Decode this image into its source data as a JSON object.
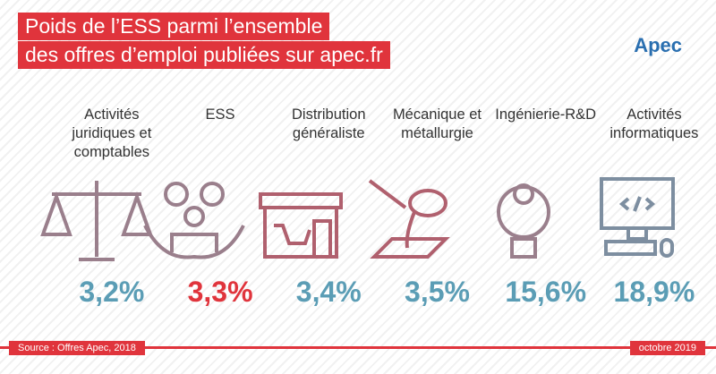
{
  "chart_data": {
    "type": "icon-stat",
    "title_lines": [
      "Poids de l’ESS parmi l’ensemble",
      "des offres d’emploi publiées sur apec.fr"
    ],
    "logo": "Apec",
    "categories": [
      "Activités juridiques et comptables",
      "ESS",
      "Distribution généraliste",
      "Mécanique et métallurgie",
      "Ingénierie-R&D",
      "Activités informatiques"
    ],
    "values": [
      3.2,
      3.3,
      3.4,
      3.5,
      15.6,
      18.9
    ],
    "value_labels": [
      "3,2%",
      "3,3%",
      "3,4%",
      "3,5%",
      "15,6%",
      "18,9%"
    ],
    "colors": [
      "#5b9db5",
      "#e0343c",
      "#5b9db5",
      "#5b9db5",
      "#5b9db5",
      "#5b9db5"
    ],
    "source": "Source : Offres Apec, 2018",
    "date": "octobre 2019"
  }
}
